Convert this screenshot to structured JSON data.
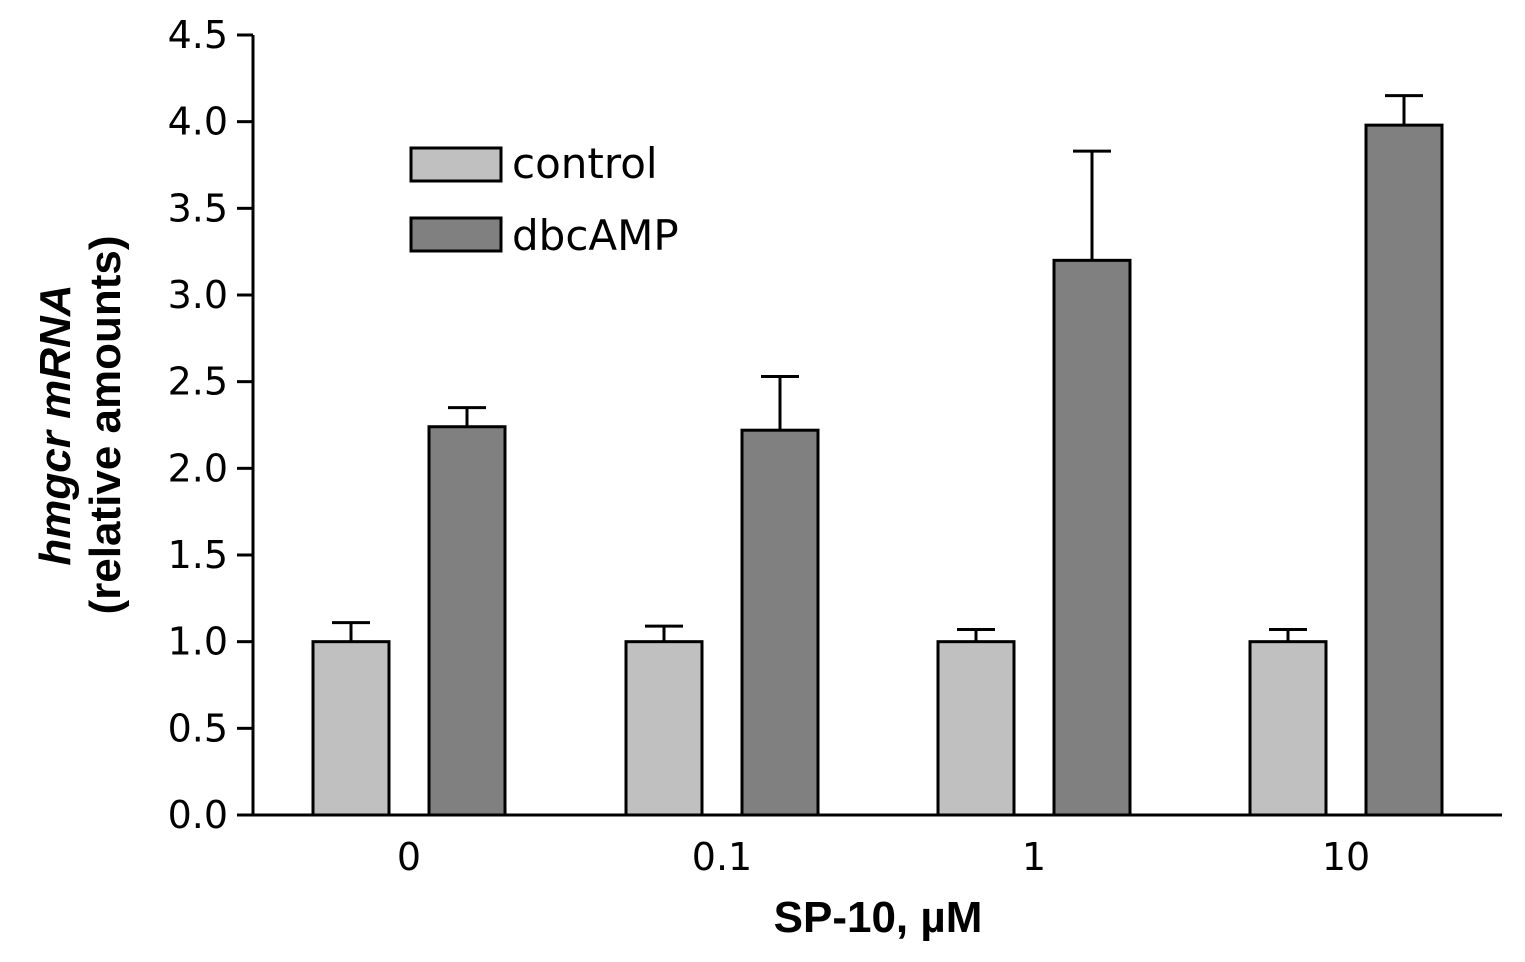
{
  "chart_data": {
    "type": "bar",
    "categories": [
      "0",
      "0.1",
      "1",
      "10"
    ],
    "series": [
      {
        "name": "control",
        "color": "#c0c0c0",
        "values": [
          1.0,
          1.0,
          1.0,
          1.0
        ],
        "errors": [
          0.11,
          0.09,
          0.07,
          0.07
        ]
      },
      {
        "name": "dbcAMP",
        "color": "#808080",
        "values": [
          2.24,
          2.22,
          3.2,
          3.98
        ],
        "errors": [
          0.11,
          0.31,
          0.63,
          0.17
        ]
      }
    ],
    "xlabel": "SP-10, µM",
    "ylabel": {
      "line1": "hmgcr mRNA",
      "line2": "(relative amounts)"
    },
    "ylim": [
      0,
      4.5
    ],
    "yticks": [
      "0.0",
      "0.5",
      "1.0",
      "1.5",
      "2.0",
      "2.5",
      "3.0",
      "3.5",
      "4.0",
      "4.5"
    ],
    "grid": false,
    "legend_position": "top-left"
  }
}
